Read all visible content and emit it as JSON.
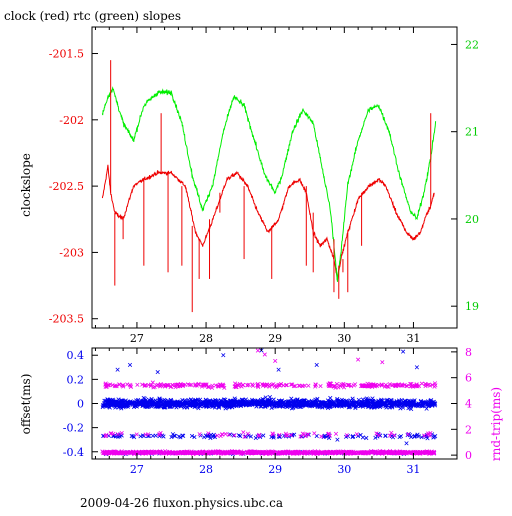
{
  "title": "clock (red) rtc (green) slopes",
  "footer": "2009-04-26 fluxon.physics.ubc.ca",
  "colors": {
    "red": "#ee0000",
    "green": "#00ee00",
    "blue": "#0000ee",
    "magenta": "#ee00ee",
    "axis": "#000000"
  },
  "chart_data": [
    {
      "type": "line",
      "title": "clock (red) rtc (green) slopes",
      "ylabel": "clockslope",
      "x_ticks": [
        27,
        28,
        29,
        30,
        31
      ],
      "xlim": [
        26.35,
        31.63
      ],
      "left_axis": {
        "ylim": [
          -203.57,
          -201.3
        ],
        "ticks": [
          -201.5,
          -202,
          -202.5,
          -203,
          -203.5
        ],
        "tick_labels": [
          "-201.5",
          "-202",
          "-202.5",
          "-203",
          "-203.5"
        ],
        "color": "#ee0000"
      },
      "right_axis": {
        "ylim": [
          18.75,
          22.2
        ],
        "ticks": [
          19,
          20,
          21,
          22
        ],
        "tick_labels": [
          "19",
          "20",
          "21",
          "22"
        ],
        "color": "#00cc00"
      },
      "series": [
        {
          "axis": "left",
          "color": "#ee0000",
          "x": [
            26.5,
            26.58,
            26.62,
            26.68,
            26.8,
            26.95,
            27.1,
            27.3,
            27.5,
            27.7,
            27.85,
            27.95,
            28.1,
            28.3,
            28.45,
            28.6,
            28.75,
            28.9,
            29.05,
            29.2,
            29.35,
            29.45,
            29.55,
            29.65,
            29.75,
            29.85,
            29.9,
            29.95,
            30.05,
            30.2,
            30.35,
            30.5,
            30.6,
            30.75,
            30.9,
            31.0,
            31.1,
            31.2,
            31.25,
            31.3
          ],
          "y": [
            -202.6,
            -202.35,
            -202.55,
            -202.7,
            -202.75,
            -202.5,
            -202.45,
            -202.4,
            -202.4,
            -202.5,
            -202.85,
            -202.95,
            -202.75,
            -202.45,
            -202.4,
            -202.5,
            -202.7,
            -202.85,
            -202.75,
            -202.5,
            -202.45,
            -202.55,
            -202.85,
            -202.95,
            -202.9,
            -203.05,
            -203.2,
            -203.05,
            -202.85,
            -202.6,
            -202.5,
            -202.45,
            -202.5,
            -202.7,
            -202.85,
            -202.9,
            -202.85,
            -202.7,
            -202.65,
            -202.55
          ]
        },
        {
          "axis": "right",
          "color": "#00ee00",
          "x": [
            26.5,
            26.58,
            26.65,
            26.8,
            26.95,
            27.1,
            27.3,
            27.5,
            27.65,
            27.8,
            27.95,
            28.1,
            28.25,
            28.4,
            28.55,
            28.7,
            28.85,
            29.0,
            29.1,
            29.25,
            29.4,
            29.55,
            29.7,
            29.8,
            29.9,
            29.95,
            30.05,
            30.2,
            30.35,
            30.5,
            30.65,
            30.8,
            30.95,
            31.05,
            31.15,
            31.25,
            31.32
          ],
          "y": [
            21.2,
            21.4,
            21.5,
            21.1,
            20.9,
            21.3,
            21.45,
            21.45,
            21.1,
            20.5,
            20.1,
            20.4,
            21.0,
            21.4,
            21.3,
            20.9,
            20.5,
            20.3,
            20.5,
            21.0,
            21.25,
            21.1,
            20.5,
            20.1,
            19.3,
            19.6,
            20.4,
            20.9,
            21.25,
            21.3,
            21.0,
            20.5,
            20.1,
            20.0,
            20.3,
            20.7,
            21.1
          ]
        }
      ],
      "spikes": {
        "axis": "left",
        "color": "#ee0000",
        "x": [
          26.62,
          26.68,
          26.8,
          27.1,
          27.35,
          27.45,
          27.65,
          27.8,
          27.9,
          28.05,
          28.2,
          28.55,
          28.95,
          29.45,
          29.55,
          29.85,
          29.92,
          29.98,
          30.05,
          30.25,
          31.25
        ],
        "y_from": [
          -202.55,
          -202.7,
          -202.75,
          -202.45,
          -202.4,
          -202.4,
          -202.5,
          -202.8,
          -202.9,
          -202.75,
          -202.55,
          -202.5,
          -202.8,
          -202.5,
          -202.7,
          -202.9,
          -203.1,
          -203.05,
          -202.85,
          -202.55,
          -202.65
        ],
        "y_to": [
          -201.55,
          -203.25,
          -202.9,
          -203.1,
          -201.95,
          -203.15,
          -203.1,
          -203.45,
          -203.2,
          -203.2,
          -202.7,
          -203.05,
          -203.2,
          -203.1,
          -203.15,
          -203.3,
          -203.35,
          -203.15,
          -203.3,
          -202.95,
          -201.95
        ]
      }
    },
    {
      "type": "scatter",
      "ylabel_left": "offset(ms)",
      "ylabel_right": "rnd-trip(ms)",
      "x_ticks": [
        27,
        28,
        29,
        30,
        31
      ],
      "xlim": [
        26.35,
        31.63
      ],
      "left_axis": {
        "ylim": [
          -0.46,
          0.46
        ],
        "ticks": [
          0.4,
          0.2,
          0,
          -0.2,
          -0.4
        ],
        "tick_labels": [
          "0.4",
          "0.2",
          "0",
          "-0.2",
          "-0.4"
        ],
        "color": "#0000ee"
      },
      "right_axis": {
        "ylim": [
          -0.3,
          8.3
        ],
        "ticks": [
          0,
          2,
          4,
          6,
          8
        ],
        "tick_labels": [
          "0",
          "2",
          "4",
          "6",
          "8"
        ],
        "color": "#ee00ee"
      },
      "series": [
        {
          "name": "offset",
          "axis": "left",
          "color": "#0000ee",
          "x_range": [
            26.5,
            31.32
          ],
          "bands": [
            {
              "center": 0.0,
              "spread": 0.07,
              "count": 1400
            },
            {
              "center": -0.27,
              "spread": 0.03,
              "count": 120
            },
            {
              "center": -0.41,
              "spread": 0.02,
              "count": 60
            }
          ],
          "outliers": [
            {
              "x": 26.72,
              "y": 0.28
            },
            {
              "x": 26.9,
              "y": 0.32
            },
            {
              "x": 27.3,
              "y": 0.26
            },
            {
              "x": 28.25,
              "y": 0.4
            },
            {
              "x": 28.8,
              "y": 0.44
            },
            {
              "x": 29.05,
              "y": 0.28
            },
            {
              "x": 29.6,
              "y": 0.32
            },
            {
              "x": 30.85,
              "y": 0.43
            },
            {
              "x": 31.05,
              "y": 0.3
            },
            {
              "x": 29.9,
              "y": -0.3
            },
            {
              "x": 30.9,
              "y": -0.33
            }
          ]
        },
        {
          "name": "rnd-trip",
          "axis": "right",
          "color": "#ee00ee",
          "x_range": [
            26.5,
            31.32
          ],
          "bands": [
            {
              "center": 0.2,
              "spread": 0.18,
              "count": 900
            },
            {
              "center": 5.4,
              "spread": 0.35,
              "count": 260
            },
            {
              "center": 1.6,
              "spread": 0.3,
              "count": 60
            }
          ],
          "outliers": [
            {
              "x": 28.85,
              "y": 7.8
            },
            {
              "x": 28.75,
              "y": 8.1
            },
            {
              "x": 29.0,
              "y": 7.3
            },
            {
              "x": 30.2,
              "y": 7.4
            },
            {
              "x": 30.55,
              "y": 7.2
            }
          ]
        }
      ]
    }
  ]
}
